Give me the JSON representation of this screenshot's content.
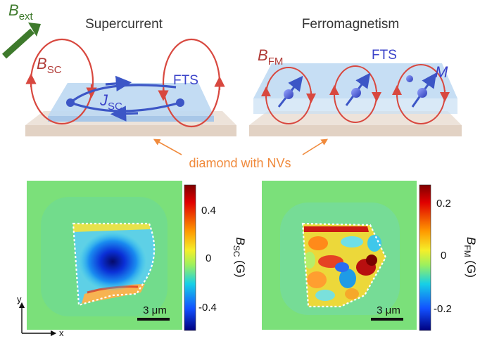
{
  "top": {
    "bext": {
      "base": "B",
      "sub": "ext"
    },
    "left": {
      "title": "Supercurrent",
      "b_label": {
        "base": "B",
        "sub": "SC"
      },
      "j_label": {
        "base": "J",
        "sub": "SC"
      },
      "sample_label": "FTS"
    },
    "right": {
      "title": "Ferromagnetism",
      "b_label": {
        "base": "B",
        "sub": "FM"
      },
      "sample_label": "FTS",
      "moment_label": "M"
    },
    "substrate_label": "diamond with NVs"
  },
  "maps": [
    {
      "scale_bar": "3 μm",
      "colorbar": {
        "label_base": "B",
        "label_sub": "SC",
        "unit": "(G)",
        "ticks": [
          "0.4",
          "0",
          "-0.4"
        ]
      },
      "axes": {
        "x": "x",
        "y": "y"
      }
    },
    {
      "scale_bar": "3 μm",
      "colorbar": {
        "label_base": "B",
        "label_sub": "FM",
        "unit": "(G)",
        "ticks": [
          "0.2",
          "0",
          "-0.2"
        ]
      }
    }
  ],
  "colors": {
    "field_line": "#d8483f",
    "current": "#3c56c6",
    "bext_arrow": "#3e7a2c",
    "substrate_label": "#f08a3c",
    "outline": "#ffffff"
  }
}
